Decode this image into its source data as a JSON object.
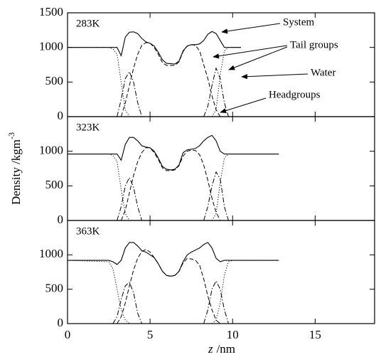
{
  "figure": {
    "x_label_variable": "z",
    "x_label_unit": "/nm",
    "y_label": "Density /kgm",
    "y_label_superscript": "-3"
  },
  "chart_data": [
    {
      "type": "line",
      "label": "283K",
      "show_xtick_labels": false,
      "xlim": [
        0,
        18.6
      ],
      "xticks": [
        0,
        5,
        10,
        15
      ],
      "ylim": [
        0,
        1500
      ],
      "yticks": [
        0,
        500,
        1000,
        1500
      ],
      "x": [
        0,
        2.5,
        2.75,
        3,
        3.25,
        3.5,
        3.75,
        4,
        4.25,
        4.5,
        4.75,
        5,
        5.25,
        5.5,
        5.75,
        6,
        6.25,
        6.5,
        6.75,
        7,
        7.25,
        7.5,
        7.75,
        8,
        8.25,
        8.5,
        8.75,
        9,
        9.25,
        9.5,
        9.75,
        10,
        10.25,
        10.5,
        12.8
      ],
      "series": [
        {
          "name": "System",
          "color": "#000000",
          "style": "solid",
          "values": [
            1000,
            1000,
            1000,
            1000,
            880,
            1150,
            1220,
            1225,
            1200,
            1130,
            1080,
            1060,
            1020,
            930,
            820,
            770,
            765,
            760,
            800,
            950,
            1020,
            1040,
            1040,
            1050,
            1100,
            1190,
            1230,
            1200,
            1100,
            1000,
            1000,
            1000,
            1000,
            1000,
            null
          ]
        },
        {
          "name": "Tail groups",
          "color": "#000000",
          "style": "dashed",
          "values": [
            null,
            null,
            null,
            null,
            0,
            200,
            450,
            700,
            900,
            1030,
            1070,
            1060,
            1000,
            900,
            780,
            740,
            740,
            740,
            790,
            940,
            1020,
            1040,
            1030,
            950,
            750,
            550,
            300,
            100,
            0,
            null,
            null,
            null,
            null,
            null,
            null
          ]
        },
        {
          "name": "Water",
          "color": "#000000",
          "style": "dotted",
          "values": [
            1000,
            1000,
            980,
            900,
            500,
            100,
            0,
            null,
            null,
            null,
            null,
            null,
            null,
            null,
            null,
            null,
            null,
            null,
            null,
            null,
            null,
            null,
            null,
            null,
            null,
            null,
            0,
            100,
            600,
            950,
            1000,
            1000,
            1000,
            1000,
            null
          ]
        },
        {
          "name": "Headgroups",
          "color": "#000000",
          "style": "dashdot",
          "values": [
            null,
            null,
            null,
            0,
            250,
            550,
            650,
            500,
            200,
            0,
            null,
            null,
            null,
            null,
            null,
            null,
            null,
            null,
            null,
            null,
            null,
            null,
            null,
            null,
            0,
            150,
            450,
            700,
            550,
            200,
            0,
            null,
            null,
            null,
            null
          ]
        }
      ]
    },
    {
      "type": "line",
      "label": "323K",
      "show_xtick_labels": false,
      "xlim": [
        0,
        18.6
      ],
      "xticks": [
        0,
        5,
        10,
        15
      ],
      "ylim": [
        0,
        1500
      ],
      "yticks": [
        0,
        500,
        1000
      ],
      "x": [
        0,
        2.5,
        2.75,
        3,
        3.25,
        3.5,
        3.75,
        4,
        4.25,
        4.5,
        4.75,
        5,
        5.25,
        5.5,
        5.75,
        6,
        6.25,
        6.5,
        6.75,
        7,
        7.25,
        7.5,
        7.75,
        8,
        8.25,
        8.5,
        8.75,
        9,
        9.25,
        9.5,
        9.75,
        10,
        10.25,
        10.5,
        12.8
      ],
      "series": [
        {
          "name": "System",
          "color": "#000000",
          "style": "solid",
          "values": [
            960,
            960,
            960,
            960,
            870,
            1100,
            1200,
            1200,
            1150,
            1080,
            1060,
            1050,
            1000,
            900,
            780,
            740,
            730,
            740,
            800,
            980,
            1020,
            1030,
            1040,
            1080,
            1150,
            1200,
            1230,
            1150,
            1000,
            960,
            960,
            960,
            960,
            960,
            960
          ]
        },
        {
          "name": "Tail groups",
          "color": "#000000",
          "style": "dashed",
          "values": [
            null,
            null,
            null,
            null,
            0,
            150,
            400,
            650,
            850,
            980,
            1050,
            1050,
            980,
            880,
            760,
            720,
            720,
            730,
            790,
            930,
            1000,
            1020,
            1010,
            950,
            800,
            580,
            320,
            120,
            0,
            null,
            null,
            null,
            null,
            null,
            null
          ]
        },
        {
          "name": "Water",
          "color": "#000000",
          "style": "dotted",
          "values": [
            960,
            960,
            940,
            850,
            450,
            100,
            0,
            null,
            null,
            null,
            null,
            null,
            null,
            null,
            null,
            null,
            null,
            null,
            null,
            null,
            null,
            null,
            null,
            null,
            null,
            null,
            0,
            100,
            550,
            900,
            960,
            960,
            960,
            960,
            960
          ]
        },
        {
          "name": "Headgroups",
          "color": "#000000",
          "style": "dashdot",
          "values": [
            null,
            null,
            null,
            0,
            200,
            500,
            620,
            480,
            200,
            0,
            null,
            null,
            null,
            null,
            null,
            null,
            null,
            null,
            null,
            null,
            null,
            null,
            null,
            null,
            0,
            200,
            500,
            700,
            600,
            200,
            0,
            null,
            null,
            null,
            null
          ]
        }
      ]
    },
    {
      "type": "line",
      "label": "363K",
      "show_xtick_labels": true,
      "xlim": [
        0,
        18.6
      ],
      "xticks": [
        0,
        5,
        10,
        15
      ],
      "ylim": [
        0,
        1500
      ],
      "yticks": [
        0,
        500,
        1000
      ],
      "x": [
        0,
        2.5,
        2.75,
        3,
        3.25,
        3.5,
        3.75,
        4,
        4.25,
        4.5,
        4.75,
        5,
        5.25,
        5.5,
        5.75,
        6,
        6.25,
        6.5,
        6.75,
        7,
        7.25,
        7.5,
        7.75,
        8,
        8.25,
        8.5,
        8.75,
        9,
        9.25,
        9.5,
        9.75,
        10,
        10.25,
        10.5,
        12.8
      ],
      "series": [
        {
          "name": "System",
          "color": "#000000",
          "style": "solid",
          "values": [
            920,
            920,
            900,
            860,
            920,
            1100,
            1180,
            1180,
            1130,
            1060,
            1040,
            1000,
            960,
            870,
            760,
            700,
            690,
            700,
            760,
            900,
            1000,
            1040,
            1070,
            1100,
            1150,
            1180,
            1100,
            950,
            900,
            920,
            920,
            920,
            920,
            920,
            920
          ]
        },
        {
          "name": "Tail groups",
          "color": "#000000",
          "style": "dashed",
          "values": [
            null,
            null,
            null,
            0,
            100,
            300,
            550,
            780,
            950,
            1050,
            1080,
            1040,
            960,
            870,
            760,
            700,
            690,
            700,
            760,
            880,
            950,
            940,
            920,
            850,
            650,
            400,
            200,
            50,
            0,
            null,
            null,
            null,
            null,
            null,
            null
          ]
        },
        {
          "name": "Water",
          "color": "#000000",
          "style": "dotted",
          "values": [
            920,
            900,
            800,
            500,
            200,
            50,
            0,
            null,
            null,
            null,
            null,
            null,
            null,
            null,
            null,
            null,
            null,
            null,
            null,
            null,
            null,
            null,
            null,
            null,
            null,
            null,
            0,
            50,
            300,
            700,
            900,
            920,
            920,
            920,
            920
          ]
        },
        {
          "name": "Headgroups",
          "color": "#000000",
          "style": "dashdot",
          "values": [
            null,
            null,
            0,
            100,
            350,
            550,
            600,
            450,
            150,
            0,
            null,
            null,
            null,
            null,
            null,
            null,
            null,
            null,
            null,
            null,
            null,
            null,
            null,
            null,
            0,
            200,
            500,
            620,
            500,
            200,
            0,
            null,
            null,
            null,
            null
          ]
        }
      ]
    }
  ]
}
